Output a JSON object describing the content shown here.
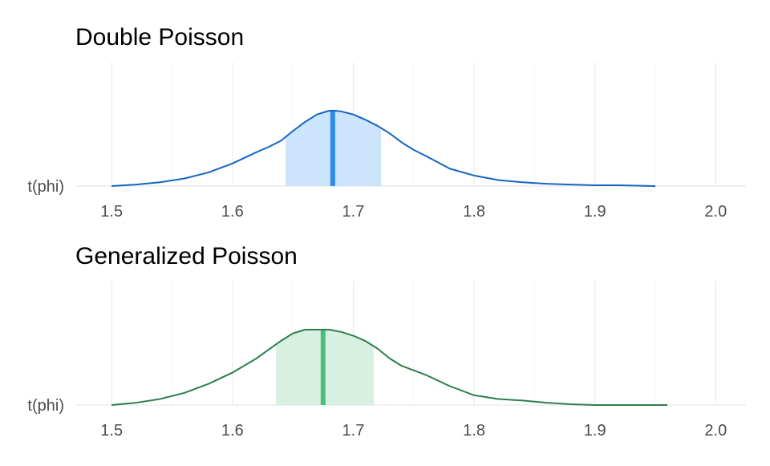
{
  "chart_data": [
    {
      "type": "area",
      "title": "Double Poisson",
      "ylabel_category": "t(phi)",
      "xlim": [
        1.47,
        2.025
      ],
      "x_ticks": [
        1.5,
        1.6,
        1.7,
        1.8,
        1.9,
        2.0
      ],
      "x_tick_labels": [
        "1.5",
        "1.6",
        "1.7",
        "1.8",
        "1.9",
        "2.0"
      ],
      "grid": true,
      "colors": {
        "line": "#1565c0",
        "fill": "#cce5fd",
        "median": "#2b8cf2"
      },
      "median": 1.683,
      "interval": [
        1.644,
        1.723
      ],
      "density": {
        "x": [
          1.5,
          1.52,
          1.54,
          1.56,
          1.58,
          1.6,
          1.62,
          1.63,
          1.64,
          1.65,
          1.66,
          1.67,
          1.68,
          1.685,
          1.69,
          1.7,
          1.71,
          1.72,
          1.73,
          1.74,
          1.75,
          1.76,
          1.78,
          1.8,
          1.82,
          1.84,
          1.86,
          1.88,
          1.9,
          1.92,
          1.95
        ],
        "y": [
          0.0,
          0.02,
          0.05,
          0.1,
          0.18,
          0.3,
          0.45,
          0.52,
          0.6,
          0.73,
          0.85,
          0.95,
          1.0,
          1.0,
          0.99,
          0.95,
          0.88,
          0.8,
          0.7,
          0.58,
          0.48,
          0.4,
          0.23,
          0.14,
          0.08,
          0.05,
          0.03,
          0.02,
          0.01,
          0.01,
          0.0
        ]
      }
    },
    {
      "type": "area",
      "title": "Generalized Poisson",
      "ylabel_category": "t(phi)",
      "xlim": [
        1.47,
        2.025
      ],
      "x_ticks": [
        1.5,
        1.6,
        1.7,
        1.8,
        1.9,
        2.0
      ],
      "x_tick_labels": [
        "1.5",
        "1.6",
        "1.7",
        "1.8",
        "1.9",
        "2.0"
      ],
      "grid": true,
      "colors": {
        "line": "#2e7d4f",
        "fill": "#d8f0e1",
        "median": "#4cbe7c"
      },
      "median": 1.675,
      "interval": [
        1.636,
        1.717
      ],
      "density": {
        "x": [
          1.5,
          1.52,
          1.54,
          1.56,
          1.58,
          1.6,
          1.62,
          1.64,
          1.65,
          1.66,
          1.67,
          1.68,
          1.69,
          1.7,
          1.71,
          1.72,
          1.73,
          1.74,
          1.76,
          1.78,
          1.8,
          1.82,
          1.84,
          1.86,
          1.88,
          1.9,
          1.92,
          1.96
        ],
        "y": [
          0.0,
          0.03,
          0.08,
          0.16,
          0.28,
          0.43,
          0.62,
          0.85,
          0.95,
          1.0,
          1.0,
          1.0,
          0.97,
          0.92,
          0.85,
          0.75,
          0.62,
          0.52,
          0.4,
          0.25,
          0.13,
          0.08,
          0.06,
          0.03,
          0.01,
          0.0,
          0.0,
          0.0
        ]
      }
    }
  ]
}
